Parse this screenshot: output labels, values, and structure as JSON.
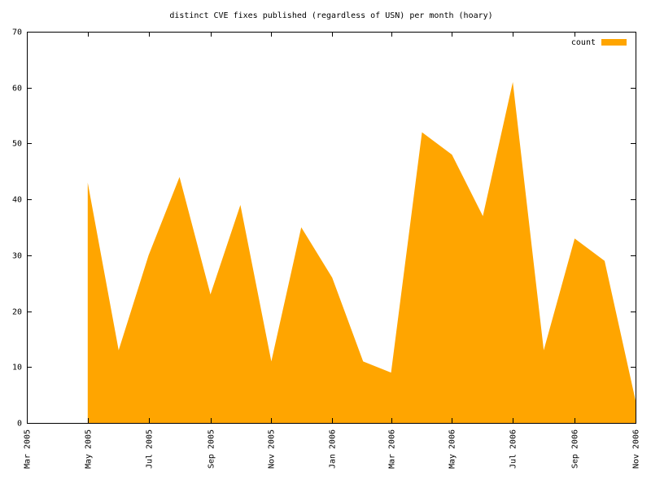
{
  "chart_data": {
    "type": "area",
    "title": "distinct CVE fixes published (regardless of USN) per month (hoary)",
    "x": [
      "2005-05",
      "2005-06",
      "2005-07",
      "2005-08",
      "2005-09",
      "2005-10",
      "2005-11",
      "2005-12",
      "2006-01",
      "2006-02",
      "2006-03",
      "2006-04",
      "2006-05",
      "2006-06",
      "2006-07",
      "2006-08",
      "2006-09",
      "2006-10",
      "2006-11"
    ],
    "series": [
      {
        "name": "count",
        "color": "#ffa500",
        "values": [
          43,
          13,
          30,
          44,
          23,
          39,
          11,
          35,
          26,
          11,
          9,
          52,
          48,
          37,
          61,
          13,
          33,
          29,
          4
        ]
      }
    ],
    "xlim": [
      "2005-03",
      "2006-11"
    ],
    "xticks": [
      {
        "value": "2005-03",
        "label": "Mar 2005"
      },
      {
        "value": "2005-05",
        "label": "May 2005"
      },
      {
        "value": "2005-07",
        "label": "Jul 2005"
      },
      {
        "value": "2005-09",
        "label": "Sep 2005"
      },
      {
        "value": "2005-11",
        "label": "Nov 2005"
      },
      {
        "value": "2006-01",
        "label": "Jan 2006"
      },
      {
        "value": "2006-03",
        "label": "Mar 2006"
      },
      {
        "value": "2006-05",
        "label": "May 2006"
      },
      {
        "value": "2006-07",
        "label": "Jul 2006"
      },
      {
        "value": "2006-09",
        "label": "Sep 2006"
      },
      {
        "value": "2006-11",
        "label": "Nov 2006"
      }
    ],
    "ylim": [
      0,
      70
    ],
    "yticks": [
      0,
      10,
      20,
      30,
      40,
      50,
      60,
      70
    ],
    "legend": "top-right"
  }
}
